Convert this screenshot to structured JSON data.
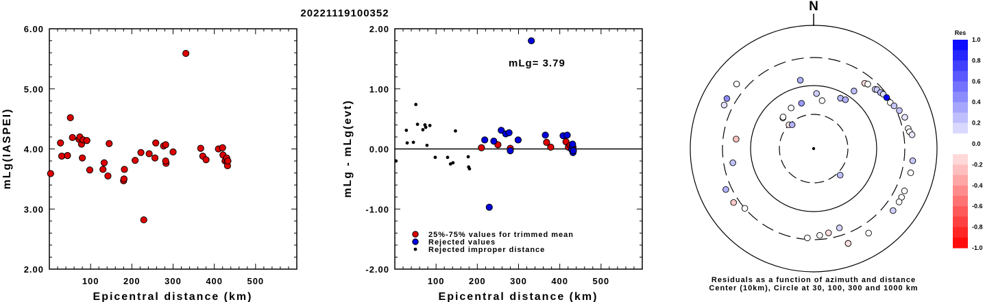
{
  "title": "20221119100352",
  "chart_data": [
    {
      "type": "scatter",
      "xlabel": "Epicentral distance (km)",
      "ylabel": "mLg(IASPEI)",
      "xlim": [
        0,
        600
      ],
      "ylim": [
        2.0,
        6.0
      ],
      "x_ticks": [
        "100",
        "200",
        "300",
        "400",
        "500"
      ],
      "y_ticks": [
        "2.00",
        "3.00",
        "4.00",
        "5.00",
        "6.00"
      ],
      "series": [
        {
          "color": "#dd0000",
          "points": [
            [
              3,
              3.59
            ],
            [
              27,
              4.1
            ],
            [
              30,
              3.88
            ],
            [
              44,
              3.89
            ],
            [
              51,
              4.52
            ],
            [
              56,
              4.19
            ],
            [
              72,
              4.16
            ],
            [
              74,
              4.2
            ],
            [
              78,
              4.08
            ],
            [
              80,
              3.85
            ],
            [
              82,
              4.15
            ],
            [
              91,
              4.14
            ],
            [
              98,
              3.65
            ],
            [
              130,
              3.66
            ],
            [
              133,
              3.77
            ],
            [
              142,
              3.55
            ],
            [
              145,
              4.09
            ],
            [
              180,
              3.47
            ],
            [
              181,
              3.5
            ],
            [
              182,
              3.66
            ],
            [
              208,
              3.81
            ],
            [
              222,
              3.94
            ],
            [
              229,
              2.82
            ],
            [
              242,
              3.92
            ],
            [
              256,
              3.85
            ],
            [
              258,
              4.1
            ],
            [
              277,
              4.05
            ],
            [
              282,
              4.07
            ],
            [
              283,
              3.76
            ],
            [
              282,
              3.8
            ],
            [
              300,
              3.95
            ],
            [
              331,
              5.59
            ],
            [
              367,
              4.01
            ],
            [
              372,
              3.88
            ],
            [
              380,
              3.82
            ],
            [
              410,
              4.0
            ],
            [
              420,
              4.02
            ],
            [
              421,
              3.9
            ],
            [
              426,
              3.8
            ],
            [
              430,
              3.85
            ],
            [
              431,
              3.78
            ],
            [
              432,
              3.72
            ],
            [
              433,
              3.8
            ]
          ]
        }
      ]
    },
    {
      "type": "scatter",
      "xlabel": "Epicentral distance (km)",
      "ylabel": "mLg - mLg(evt)",
      "xlim": [
        0,
        600
      ],
      "ylim": [
        -2.0,
        2.0
      ],
      "x_ticks": [
        "100",
        "200",
        "300",
        "400",
        "500"
      ],
      "y_ticks": [
        "-2.00",
        "-1.00",
        "0.00",
        "1.00",
        "2.00"
      ],
      "annotation": "mLg= 3.79",
      "legend": [
        {
          "label": "25%-75% values for trimmed mean",
          "color": "#dd0000"
        },
        {
          "label": "Rejected values",
          "color": "#0000dd"
        },
        {
          "label": "Rejected improper distance",
          "color": "#000000"
        }
      ],
      "series": [
        {
          "name": "25%-75% values for trimmed mean",
          "color": "#dd0000",
          "points": [
            [
              210,
              0.02
            ],
            [
              250,
              0.07
            ],
            [
              280,
              0.01
            ],
            [
              368,
              0.11
            ],
            [
              378,
              0.03
            ],
            [
              415,
              0.12
            ],
            [
              421,
              0.03
            ],
            [
              425,
              0.06
            ],
            [
              430,
              0.01
            ],
            [
              432,
              0.03
            ]
          ]
        },
        {
          "name": "Rejected values",
          "color": "#0000dd",
          "points": [
            [
              218,
              0.15
            ],
            [
              229,
              -0.97
            ],
            [
              240,
              0.13
            ],
            [
              258,
              0.31
            ],
            [
              269,
              0.25
            ],
            [
              277,
              0.27
            ],
            [
              280,
              -0.03
            ],
            [
              299,
              0.15
            ],
            [
              331,
              1.8
            ],
            [
              365,
              0.23
            ],
            [
              408,
              0.22
            ],
            [
              418,
              0.23
            ],
            [
              429,
              -0.01
            ],
            [
              430,
              0.05
            ],
            [
              432,
              -0.06
            ],
            [
              433,
              -0.03
            ],
            [
              431,
              0.08
            ]
          ]
        },
        {
          "name": "Rejected improper distance",
          "color": "#000000",
          "points": [
            [
              3,
              -0.2
            ],
            [
              28,
              0.31
            ],
            [
              30,
              0.1
            ],
            [
              45,
              0.11
            ],
            [
              51,
              0.74
            ],
            [
              55,
              0.41
            ],
            [
              68,
              0.32
            ],
            [
              73,
              0.4
            ],
            [
              75,
              0.36
            ],
            [
              78,
              0.06
            ],
            [
              85,
              0.39
            ],
            [
              98,
              -0.14
            ],
            [
              128,
              -0.14
            ],
            [
              135,
              -0.25
            ],
            [
              141,
              -0.23
            ],
            [
              147,
              0.3
            ],
            [
              178,
              -0.13
            ],
            [
              179,
              -0.3
            ],
            [
              181,
              -0.33
            ]
          ]
        }
      ]
    },
    {
      "type": "scatter",
      "caption_line1": "Residuals as a function of azimuth and distance",
      "caption_line2": "Center (10km), Circle at 30, 100, 300 and 1000 km",
      "north_label": "N",
      "colorbar_title": "Res",
      "colorbar_ticks": [
        "1.0",
        "0.8",
        "0.6",
        "0.4",
        "0.2",
        "0.0",
        "-0.2",
        "-0.4",
        "-0.6",
        "-0.8",
        "-1.0"
      ],
      "points": [
        [
          -11,
          0.31
        ],
        [
          -83,
          -0.23
        ],
        [
          -100,
          0.24
        ],
        [
          -46,
          -0.1
        ],
        [
          -45,
          0.06
        ],
        [
          -44,
          0.02
        ],
        [
          -29,
          -0.01
        ],
        [
          -15,
          0.4
        ],
        [
          10,
          0.03
        ],
        [
          3,
          0.19
        ],
        [
          28,
          0.28
        ],
        [
          33,
          0.31
        ],
        [
          35,
          0.26
        ],
        [
          38,
          -0.14
        ],
        [
          40,
          0.06
        ],
        [
          46,
          0.14
        ],
        [
          47,
          0.2
        ],
        [
          50,
          0.28
        ],
        [
          52,
          0.15
        ],
        [
          55,
          1.8
        ],
        [
          59,
          -0.04
        ],
        [
          62,
          0.22
        ],
        [
          66,
          0.23
        ],
        [
          71,
          0.1
        ],
        [
          78,
          -0.09
        ],
        [
          80,
          0.07
        ],
        [
          82,
          0.1
        ],
        [
          97,
          0.22
        ],
        [
          104,
          0.06
        ],
        [
          115,
          -0.01
        ],
        [
          119,
          0.01
        ],
        [
          122,
          -0.06
        ],
        [
          128,
          0.18
        ],
        [
          147,
          0.05
        ],
        [
          160,
          0.01
        ],
        [
          160,
          -0.12
        ],
        [
          162,
          0.17
        ],
        [
          170,
          -0.12
        ],
        [
          176,
          -0.08
        ],
        [
          184,
          0.0
        ],
        [
          229,
          0.04
        ],
        [
          236,
          -0.2
        ],
        [
          245,
          0.3
        ],
        [
          296,
          0.11
        ],
        [
          300,
          0.45
        ],
        [
          310,
          0.07
        ],
        [
          315,
          0.25
        ],
        [
          318,
          0.3
        ]
      ]
    }
  ]
}
